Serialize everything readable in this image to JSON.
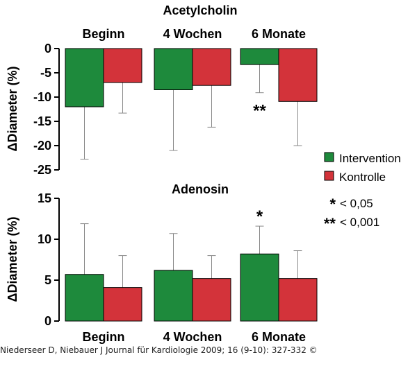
{
  "chart_data": [
    {
      "type": "bar",
      "title": "Acetylcholin",
      "ylabel": "ΔDiameter (%)",
      "ylim": [
        -25,
        0
      ],
      "yticks": [
        0,
        -5,
        -10,
        -15,
        -20,
        -25
      ],
      "ytick_labels": [
        "0",
        "-5",
        "-10",
        "-15",
        "-20",
        "-25"
      ],
      "categories": [
        "Beginn",
        "4 Wochen",
        "6 Monate"
      ],
      "category_labels_position": "top",
      "series": [
        {
          "name": "Intervention",
          "values": [
            -12,
            -8.5,
            -3.3
          ],
          "error": [
            10.8,
            12.5,
            5.8
          ]
        },
        {
          "name": "Kontrolle",
          "values": [
            -7,
            -7.6,
            -10.9
          ],
          "error": [
            6.3,
            8.6,
            9.1
          ]
        }
      ],
      "annotations": [
        {
          "text": "**",
          "category": "6 Monate",
          "series": "Intervention"
        }
      ],
      "grid": false
    },
    {
      "type": "bar",
      "title": "Adenosin",
      "ylabel": "ΔDiameter (%)",
      "ylim": [
        0,
        15
      ],
      "yticks": [
        0,
        5,
        10,
        15
      ],
      "ytick_labels": [
        "0",
        "5",
        "10",
        "15"
      ],
      "categories": [
        "Beginn",
        "4 Wochen",
        "6 Monate"
      ],
      "category_labels_position": "bottom",
      "series": [
        {
          "name": "Intervention",
          "values": [
            5.7,
            6.2,
            8.2
          ],
          "error": [
            6.2,
            4.5,
            3.4
          ]
        },
        {
          "name": "Kontrolle",
          "values": [
            4.1,
            5.2,
            5.2
          ],
          "error": [
            3.9,
            2.8,
            3.4
          ]
        }
      ],
      "annotations": [
        {
          "text": "*",
          "category": "6 Monate",
          "series": "Intervention"
        }
      ],
      "grid": false
    }
  ],
  "legend": {
    "placement": "right",
    "items": [
      {
        "label": "Intervention",
        "color": "#1e8a3c"
      },
      {
        "label": "Kontrolle",
        "color": "#d3333a"
      }
    ]
  },
  "significance": [
    {
      "symbol": "*",
      "label": "< 0,05"
    },
    {
      "symbol": "**",
      "label": "< 0,001"
    }
  ],
  "colors": {
    "intervention": "#1e8a3c",
    "kontrolle": "#d3333a",
    "errorbar": "#888888"
  },
  "citation": "Niederseer D, Niebauer J Journal für Kardiologie 2009; 16 (9-10): 327-332 ©"
}
